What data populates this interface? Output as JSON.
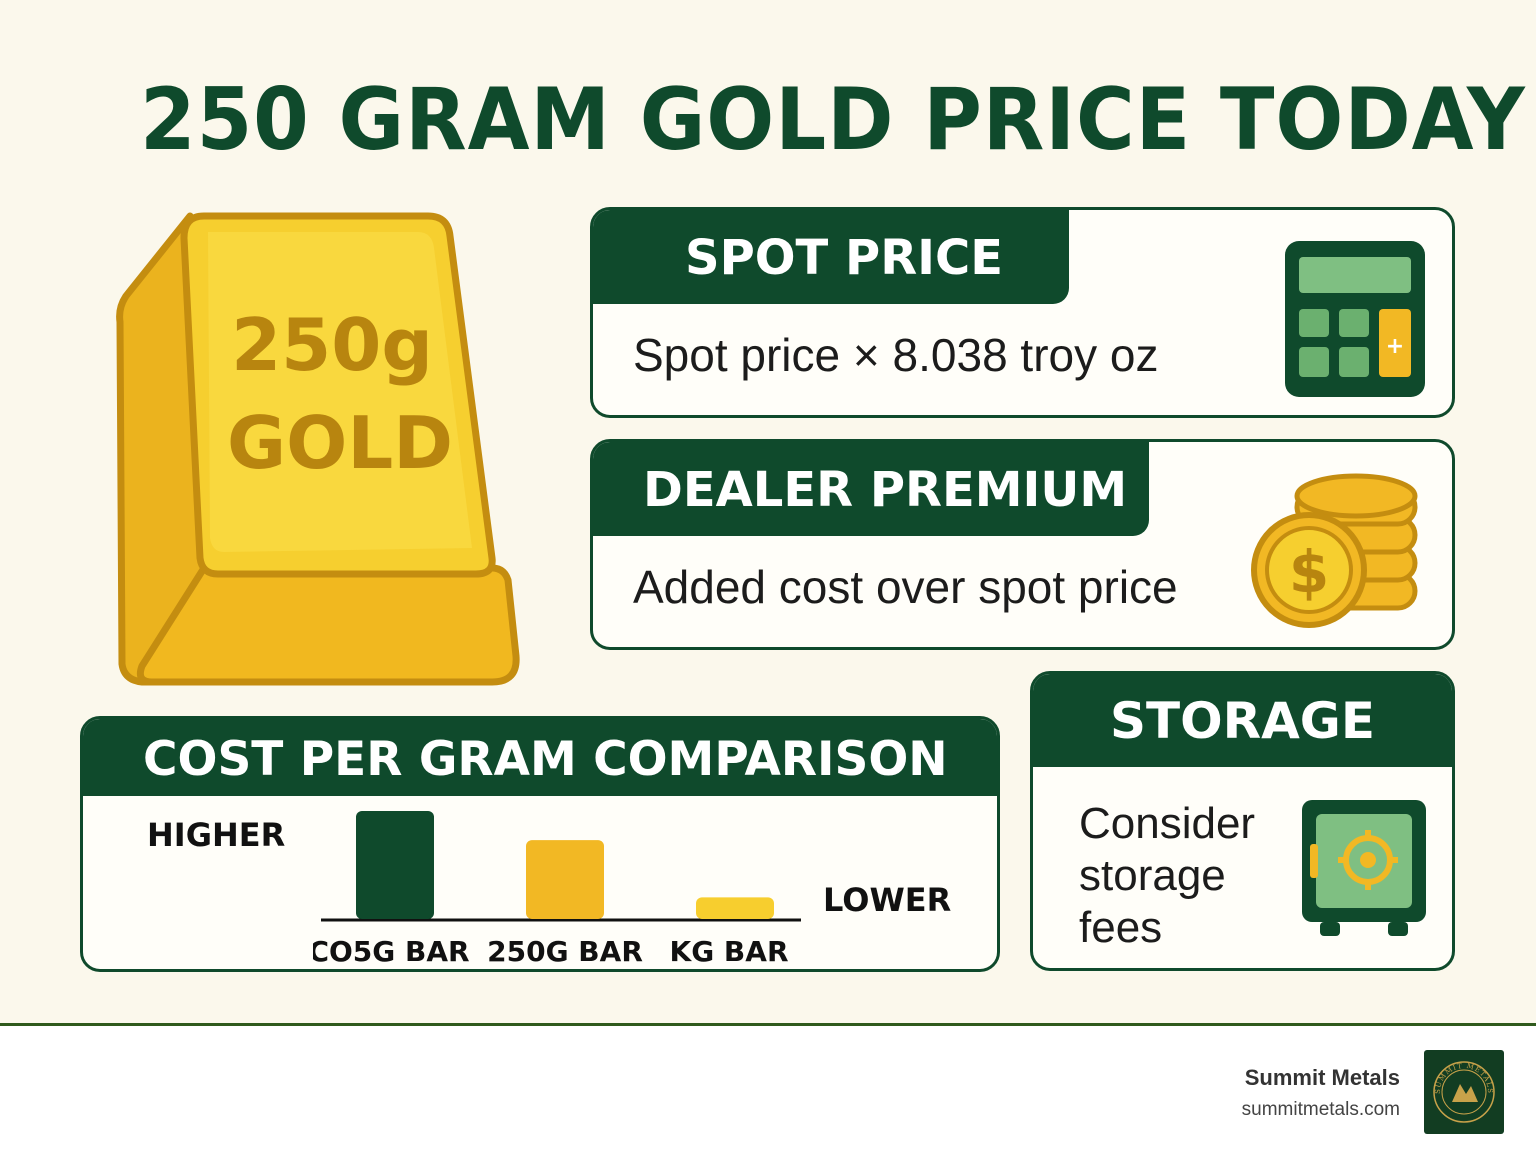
{
  "title": "250 GRAM GOLD PRICE TODAY",
  "gold_bar": {
    "weight_text": "250g",
    "metal_text": "GOLD"
  },
  "spot_price": {
    "heading": "SPOT PRICE",
    "text": "Spot price × 8.038 troy oz",
    "icon": "calculator-icon",
    "icon_symbol": "+"
  },
  "dealer_premium": {
    "heading": "DEALER PREMIUM",
    "text": "Added cost over spot price",
    "icon": "coin-stack-icon",
    "icon_symbol": "$"
  },
  "storage": {
    "heading": "STORAGE",
    "text": "Consider storage fees",
    "icon": "safe-icon"
  },
  "comparison": {
    "heading": "COST PER GRAM COMPARISON",
    "high_label": "HIGHER",
    "low_label": "LOWER",
    "chart_data": {
      "type": "bar",
      "categories": [
        "CO5G BAR",
        "250G BAR",
        "KG BAR"
      ],
      "values": [
        1.0,
        0.73,
        0.2
      ],
      "colors": [
        "#0f4a2c",
        "#f2b824",
        "#f7ce2e"
      ]
    }
  },
  "footer": {
    "brand_name": "Summit Metals",
    "brand_url": "summitmetals.com",
    "logo_text": "SUMMIT METALS"
  },
  "colors": {
    "primary_green": "#0f4a2c",
    "gold": "#f2b824",
    "background": "#fbf8ec"
  }
}
